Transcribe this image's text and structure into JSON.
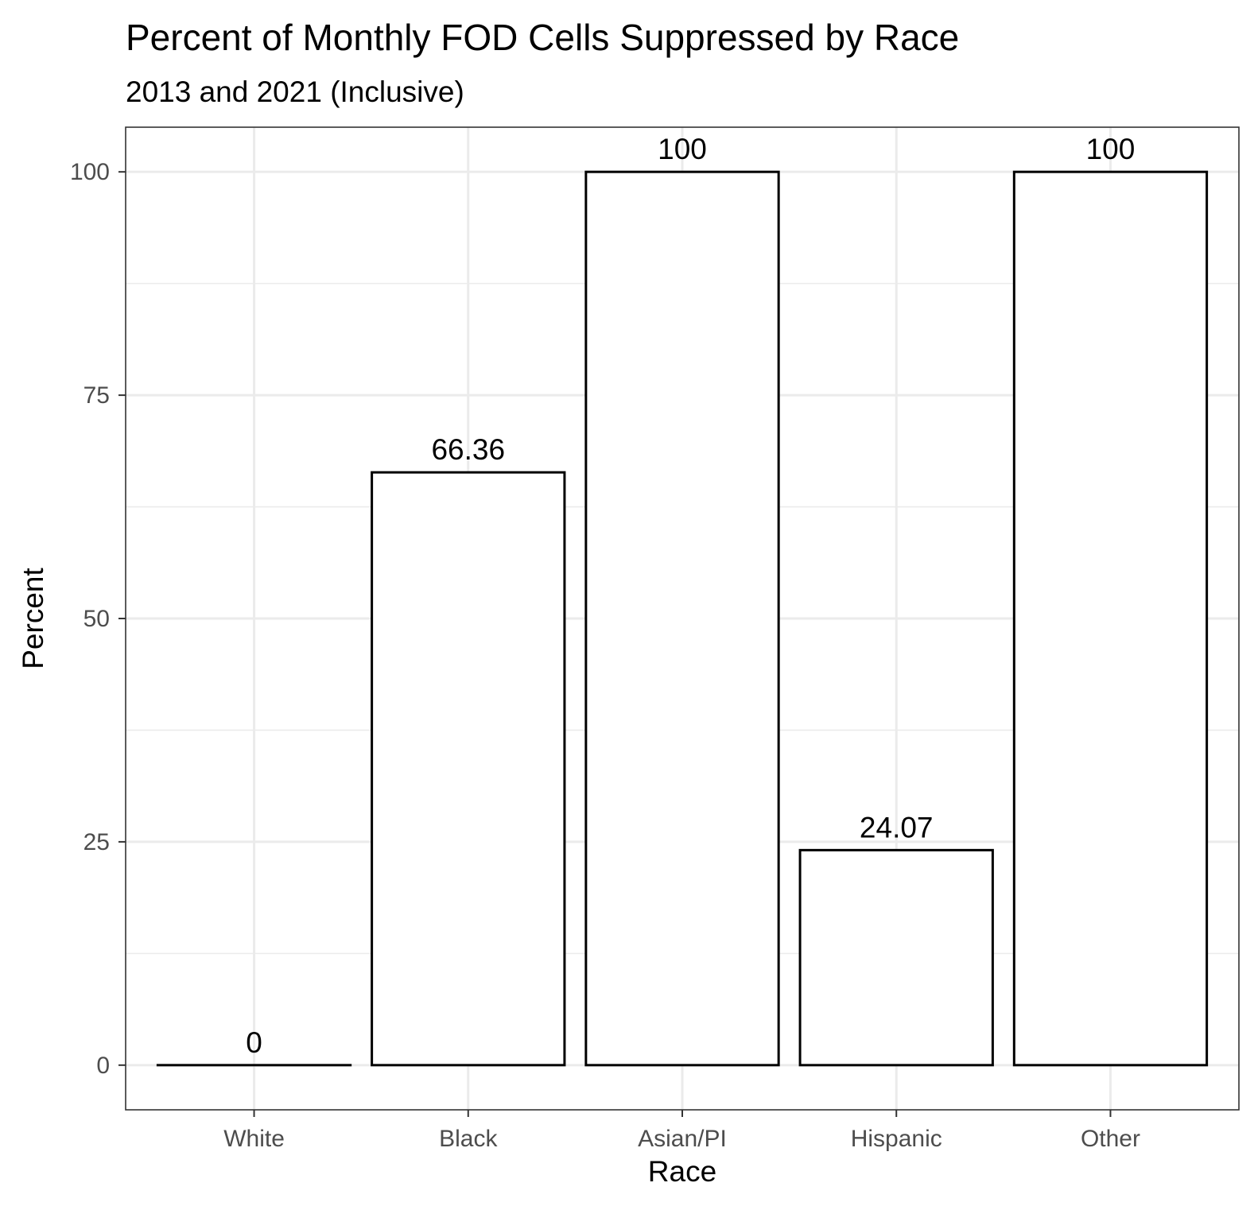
{
  "chart_data": {
    "type": "bar",
    "title": "Percent of Monthly FOD Cells Suppressed by Race",
    "subtitle": "2013 and 2021 (Inclusive)",
    "xlabel": "Race",
    "ylabel": "Percent",
    "categories": [
      "White",
      "Black",
      "Asian/PI",
      "Hispanic",
      "Other"
    ],
    "values": [
      0,
      66.36,
      100,
      24.07,
      100
    ],
    "value_labels": [
      "0",
      "66.36",
      "100",
      "24.07",
      "100"
    ],
    "ylim": [
      -5,
      105
    ],
    "y_ticks": [
      0,
      25,
      50,
      75,
      100
    ],
    "y_tick_labels": [
      "0",
      "25",
      "50",
      "75",
      "100"
    ],
    "y_minor_ticks": [
      12.5,
      37.5,
      62.5,
      87.5
    ],
    "grid": true,
    "legend": "none",
    "colors": {
      "bar_fill": "#ffffff",
      "bar_outline": "#000000",
      "grid": "#ebebeb",
      "panel_border": "#333333",
      "tick_text": "#4d4d4d"
    }
  }
}
